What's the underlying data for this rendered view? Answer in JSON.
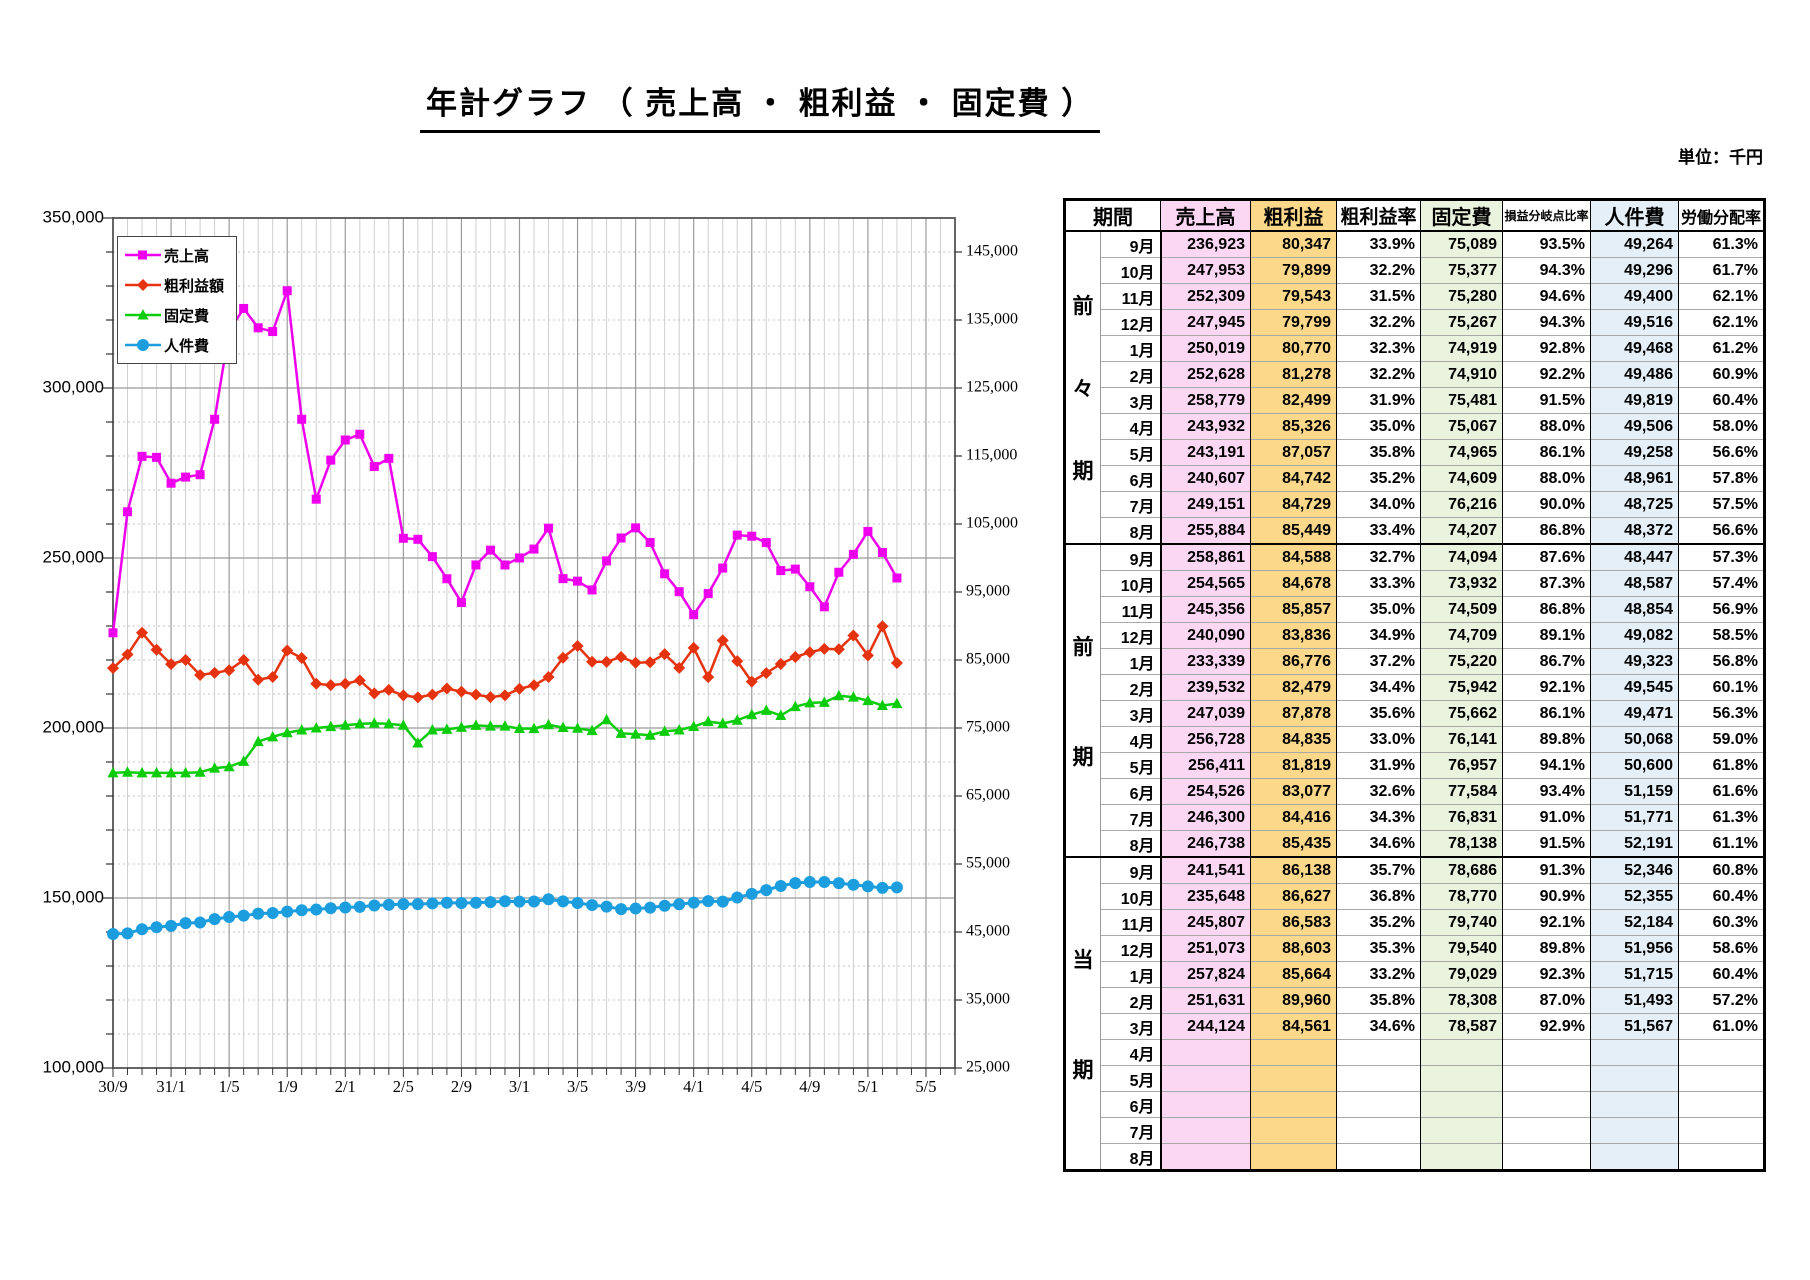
{
  "title": "年計グラフ （ 売上高 ・ 粗利益 ・ 固定費 ）",
  "unit_note": "単位：千円",
  "chart_data": {
    "type": "line",
    "x_tick_labels": [
      "30/9",
      "31/1",
      "1/5",
      "1/9",
      "2/1",
      "2/5",
      "2/9",
      "3/1",
      "3/5",
      "3/9",
      "4/1",
      "4/5",
      "4/9",
      "5/1",
      "5/5"
    ],
    "x_label_interval_months": 4,
    "x_total_slots": 58,
    "grid": "on",
    "legend_position": "top-left-inside",
    "left_axis": {
      "min": 100000,
      "max": 350000,
      "major_step": 50000,
      "minor_step": 10000,
      "tick_labels": [
        "100,000",
        "150,000",
        "200,000",
        "250,000",
        "300,000",
        "350,000"
      ]
    },
    "right_axis": {
      "min": 25000,
      "max": 150000,
      "label_step": 10000,
      "tick_labels": [
        "25,000",
        "35,000",
        "45,000",
        "55,000",
        "65,000",
        "75,000",
        "85,000",
        "95,000",
        "105,000",
        "115,000",
        "125,000",
        "135,000",
        "145,000"
      ]
    },
    "series": [
      {
        "name": "売上高",
        "axis": "left",
        "color": "#ee00ee",
        "marker": "square",
        "width": 2.5,
        "values": [
          228000,
          263600,
          279900,
          279600,
          272000,
          273800,
          274500,
          290800,
          316800,
          323400,
          317700,
          316600,
          328600,
          290800,
          267300,
          278800,
          284700,
          286400,
          276900,
          279300,
          255800,
          255500,
          250400,
          243900,
          236923,
          247953,
          252309,
          247945,
          250019,
          252628,
          258779,
          243932,
          243191,
          240607,
          249151,
          255884,
          258861,
          254565,
          245356,
          240090,
          233339,
          239532,
          247039,
          256728,
          256411,
          254526,
          246300,
          246738,
          241541,
          235648,
          245807,
          251073,
          257824,
          251631,
          244124
        ]
      },
      {
        "name": "粗利益額",
        "axis": "right",
        "color": "#e5330f",
        "marker": "diamond",
        "width": 2.5,
        "values": [
          83800,
          85800,
          89000,
          86500,
          84400,
          85000,
          82800,
          83100,
          83500,
          85000,
          82100,
          82500,
          86400,
          85300,
          81500,
          81300,
          81500,
          82000,
          80100,
          80600,
          79800,
          79500,
          79900,
          80800,
          80347,
          79899,
          79543,
          79799,
          80770,
          81278,
          82499,
          85326,
          87057,
          84742,
          84729,
          85449,
          84588,
          84678,
          85857,
          83836,
          86776,
          82479,
          87878,
          84835,
          81819,
          83077,
          84416,
          85435,
          86138,
          86627,
          86583,
          88603,
          85664,
          89960,
          84561
        ]
      },
      {
        "name": "固定費",
        "axis": "right",
        "color": "#0ccc0c",
        "marker": "triangle",
        "width": 2.5,
        "values": [
          68400,
          68500,
          68400,
          68400,
          68400,
          68400,
          68500,
          69100,
          69300,
          70100,
          73000,
          73700,
          74300,
          74700,
          75000,
          75200,
          75400,
          75600,
          75700,
          75600,
          75400,
          72800,
          74700,
          74800,
          75089,
          75377,
          75280,
          75267,
          74919,
          74910,
          75481,
          75067,
          74965,
          74609,
          76216,
          74207,
          74094,
          73932,
          74509,
          74709,
          75220,
          75942,
          75662,
          76141,
          76957,
          77584,
          76831,
          78138,
          78686,
          78770,
          79740,
          79540,
          79029,
          78308,
          78587
        ]
      },
      {
        "name": "人件費",
        "axis": "right",
        "color": "#1b9dde",
        "marker": "circle",
        "width": 3,
        "values": [
          44700,
          44800,
          45400,
          45700,
          45900,
          46300,
          46400,
          46900,
          47200,
          47400,
          47700,
          47800,
          48000,
          48200,
          48300,
          48500,
          48600,
          48700,
          48900,
          49000,
          49100,
          49100,
          49200,
          49300,
          49264,
          49296,
          49400,
          49516,
          49468,
          49486,
          49819,
          49506,
          49258,
          48961,
          48725,
          48372,
          48447,
          48587,
          48854,
          49082,
          49323,
          49545,
          49471,
          50068,
          50600,
          51159,
          51771,
          52191,
          52346,
          52355,
          52184,
          51956,
          51715,
          51493,
          51567
        ]
      }
    ]
  },
  "table": {
    "headers": [
      "期間",
      "売上高",
      "粗利益",
      "粗利益率",
      "固定費",
      "損益分岐点比率",
      "人件費",
      "労働分配率"
    ],
    "column_colors": {
      "sales": "#fbd7f4",
      "gross": "#fcd98a",
      "fixed": "#eaf3de",
      "labor": "#e5eff8"
    },
    "months": [
      "9月",
      "10月",
      "11月",
      "12月",
      "1月",
      "2月",
      "3月",
      "4月",
      "5月",
      "6月",
      "7月",
      "8月"
    ],
    "periods": [
      {
        "label": "前々期",
        "label_chars": [
          "前",
          "々",
          "期"
        ],
        "rows": [
          [
            "9月",
            "236,923",
            "80,347",
            "33.9%",
            "75,089",
            "93.5%",
            "49,264",
            "61.3%"
          ],
          [
            "10月",
            "247,953",
            "79,899",
            "32.2%",
            "75,377",
            "94.3%",
            "49,296",
            "61.7%"
          ],
          [
            "11月",
            "252,309",
            "79,543",
            "31.5%",
            "75,280",
            "94.6%",
            "49,400",
            "62.1%"
          ],
          [
            "12月",
            "247,945",
            "79,799",
            "32.2%",
            "75,267",
            "94.3%",
            "49,516",
            "62.1%"
          ],
          [
            "1月",
            "250,019",
            "80,770",
            "32.3%",
            "74,919",
            "92.8%",
            "49,468",
            "61.2%"
          ],
          [
            "2月",
            "252,628",
            "81,278",
            "32.2%",
            "74,910",
            "92.2%",
            "49,486",
            "60.9%"
          ],
          [
            "3月",
            "258,779",
            "82,499",
            "31.9%",
            "75,481",
            "91.5%",
            "49,819",
            "60.4%"
          ],
          [
            "4月",
            "243,932",
            "85,326",
            "35.0%",
            "75,067",
            "88.0%",
            "49,506",
            "58.0%"
          ],
          [
            "5月",
            "243,191",
            "87,057",
            "35.8%",
            "74,965",
            "86.1%",
            "49,258",
            "56.6%"
          ],
          [
            "6月",
            "240,607",
            "84,742",
            "35.2%",
            "74,609",
            "88.0%",
            "48,961",
            "57.8%"
          ],
          [
            "7月",
            "249,151",
            "84,729",
            "34.0%",
            "76,216",
            "90.0%",
            "48,725",
            "57.5%"
          ],
          [
            "8月",
            "255,884",
            "85,449",
            "33.4%",
            "74,207",
            "86.8%",
            "48,372",
            "56.6%"
          ]
        ]
      },
      {
        "label": "前期",
        "label_chars": [
          "前",
          "期"
        ],
        "rows": [
          [
            "9月",
            "258,861",
            "84,588",
            "32.7%",
            "74,094",
            "87.6%",
            "48,447",
            "57.3%"
          ],
          [
            "10月",
            "254,565",
            "84,678",
            "33.3%",
            "73,932",
            "87.3%",
            "48,587",
            "57.4%"
          ],
          [
            "11月",
            "245,356",
            "85,857",
            "35.0%",
            "74,509",
            "86.8%",
            "48,854",
            "56.9%"
          ],
          [
            "12月",
            "240,090",
            "83,836",
            "34.9%",
            "74,709",
            "89.1%",
            "49,082",
            "58.5%"
          ],
          [
            "1月",
            "233,339",
            "86,776",
            "37.2%",
            "75,220",
            "86.7%",
            "49,323",
            "56.8%"
          ],
          [
            "2月",
            "239,532",
            "82,479",
            "34.4%",
            "75,942",
            "92.1%",
            "49,545",
            "60.1%"
          ],
          [
            "3月",
            "247,039",
            "87,878",
            "35.6%",
            "75,662",
            "86.1%",
            "49,471",
            "56.3%"
          ],
          [
            "4月",
            "256,728",
            "84,835",
            "33.0%",
            "76,141",
            "89.8%",
            "50,068",
            "59.0%"
          ],
          [
            "5月",
            "256,411",
            "81,819",
            "31.9%",
            "76,957",
            "94.1%",
            "50,600",
            "61.8%"
          ],
          [
            "6月",
            "254,526",
            "83,077",
            "32.6%",
            "77,584",
            "93.4%",
            "51,159",
            "61.6%"
          ],
          [
            "7月",
            "246,300",
            "84,416",
            "34.3%",
            "76,831",
            "91.0%",
            "51,771",
            "61.3%"
          ],
          [
            "8月",
            "246,738",
            "85,435",
            "34.6%",
            "78,138",
            "91.5%",
            "52,191",
            "61.1%"
          ]
        ]
      },
      {
        "label": "当期",
        "label_chars": [
          "当",
          "期"
        ],
        "rows": [
          [
            "9月",
            "241,541",
            "86,138",
            "35.7%",
            "78,686",
            "91.3%",
            "52,346",
            "60.8%"
          ],
          [
            "10月",
            "235,648",
            "86,627",
            "36.8%",
            "78,770",
            "90.9%",
            "52,355",
            "60.4%"
          ],
          [
            "11月",
            "245,807",
            "86,583",
            "35.2%",
            "79,740",
            "92.1%",
            "52,184",
            "60.3%"
          ],
          [
            "12月",
            "251,073",
            "88,603",
            "35.3%",
            "79,540",
            "89.8%",
            "51,956",
            "58.6%"
          ],
          [
            "1月",
            "257,824",
            "85,664",
            "33.2%",
            "79,029",
            "92.3%",
            "51,715",
            "60.4%"
          ],
          [
            "2月",
            "251,631",
            "89,960",
            "35.8%",
            "78,308",
            "87.0%",
            "51,493",
            "57.2%"
          ],
          [
            "3月",
            "244,124",
            "84,561",
            "34.6%",
            "78,587",
            "92.9%",
            "51,567",
            "61.0%"
          ],
          [
            "4月",
            "",
            "",
            "",
            "",
            "",
            "",
            ""
          ],
          [
            "5月",
            "",
            "",
            "",
            "",
            "",
            "",
            ""
          ],
          [
            "6月",
            "",
            "",
            "",
            "",
            "",
            "",
            ""
          ],
          [
            "7月",
            "",
            "",
            "",
            "",
            "",
            "",
            ""
          ],
          [
            "8月",
            "",
            "",
            "",
            "",
            "",
            "",
            ""
          ]
        ]
      }
    ]
  }
}
